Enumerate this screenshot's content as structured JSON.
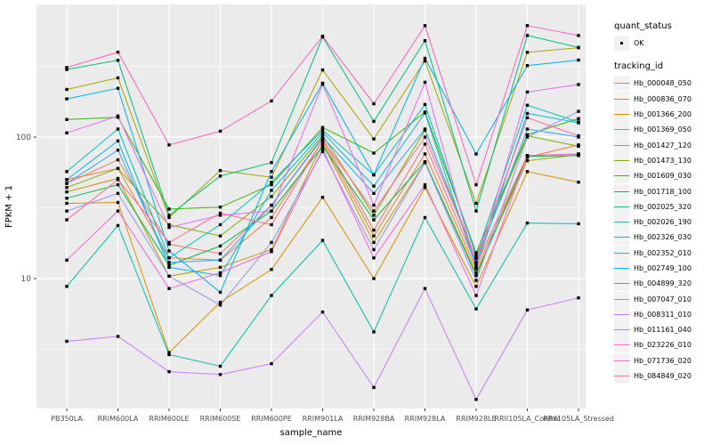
{
  "figure": {
    "panel": {
      "bg": "#EBEBEB",
      "grid_color": "#FFFFFF",
      "point_color": "#000000",
      "tick_label_color": "#4D4D4D",
      "axis_title_color": "#000000"
    },
    "legend": {
      "quant_status": {
        "title": "quant_status",
        "items": [
          {
            "label": "OK",
            "marker": "black-square"
          }
        ]
      },
      "tracking_id": {
        "title": "tracking_id"
      }
    }
  },
  "chart_data": {
    "type": "line",
    "title": "",
    "xlabel": "sample_name",
    "ylabel": "FPKM + 1",
    "y_scale": "log10",
    "ylim": [
      1.15,
      850
    ],
    "y_ticks": [
      {
        "label": "10",
        "value": 10
      },
      {
        "label": "100",
        "value": 100
      }
    ],
    "y_minor_gridlines": [
      3.162,
      31.62,
      316.2
    ],
    "grid": true,
    "legend_position": "right",
    "point_marker": "filled-black-square",
    "categories": [
      "PB350LA",
      "RRIM600LA",
      "RRIM600LE",
      "RRIM600SE",
      "RRIM600PE",
      "RRIM901LA",
      "RRIM928BA",
      "RRIM928LA",
      "RRIM928LE",
      "RRII105LA_Control",
      "RRII105LA_Stressed"
    ],
    "series": [
      {
        "name": "Hb_000048_050",
        "color": "#F8766D",
        "values": [
          47,
          69,
          17.5,
          15,
          33,
          98,
          22,
          89,
          12.6,
          74,
          76
        ]
      },
      {
        "name": "Hb_000836_070",
        "color": "#EA8331",
        "values": [
          50,
          60,
          14,
          13.5,
          27,
          94,
          20,
          76,
          11.7,
          72,
          88
        ]
      },
      {
        "name": "Hb_001366_200",
        "color": "#D89000",
        "values": [
          34,
          34.5,
          3.0,
          6.8,
          11.6,
          37.5,
          10,
          44,
          8.8,
          57,
          48
        ]
      },
      {
        "name": "Hb_001369_050",
        "color": "#C09B00",
        "values": [
          41,
          51,
          10.4,
          12,
          16,
          90,
          18,
          66,
          11,
          68,
          75
        ]
      },
      {
        "name": "Hb_001427_120",
        "color": "#A3A500",
        "values": [
          217,
          262,
          27,
          58,
          52,
          298,
          97,
          345,
          34,
          397,
          428
        ]
      },
      {
        "name": "Hb_001473_130",
        "color": "#7CAE00",
        "values": [
          44,
          60,
          24,
          20,
          38,
          103,
          28,
          112,
          13.8,
          102,
          86
        ]
      },
      {
        "name": "Hb_001609_030",
        "color": "#39B600",
        "values": [
          133,
          138,
          31,
          32,
          46,
          117,
          77,
          150,
          15.2,
          104,
          135
        ]
      },
      {
        "name": "Hb_001718_100",
        "color": "#00BB4E",
        "values": [
          37,
          46,
          12.4,
          17,
          30,
          86,
          26,
          67,
          10.5,
          73,
          74
        ]
      },
      {
        "name": "Hb_002025_320",
        "color": "#00BF7D",
        "values": [
          300,
          349,
          28,
          53,
          66,
          510,
          129,
          480,
          30,
          522,
          430
        ]
      },
      {
        "name": "Hb_002026_190",
        "color": "#00C1A3",
        "values": [
          8.8,
          23.7,
          2.9,
          2.4,
          7.6,
          18.6,
          4.2,
          27,
          6.1,
          24.7,
          24.4
        ]
      },
      {
        "name": "Hb_002326_030",
        "color": "#00BFC4",
        "values": [
          57,
          114,
          14,
          24,
          48,
          112,
          54,
          170,
          14.5,
          168,
          128
        ]
      },
      {
        "name": "Hb_002352_010",
        "color": "#00BAE0",
        "values": [
          50,
          94,
          12,
          10.5,
          42,
          108,
          45,
          148,
          12,
          147,
          126
        ]
      },
      {
        "name": "Hb_002749_100",
        "color": "#00B0F6",
        "values": [
          186,
          221,
          15.7,
          8,
          57,
          240,
          54,
          360,
          76,
          320,
          350
        ]
      },
      {
        "name": "Hb_004899_320",
        "color": "#35A2FF",
        "values": [
          47,
          81,
          13,
          13.5,
          33,
          100,
          40,
          114,
          13,
          114,
          100
        ]
      },
      {
        "name": "Hb_007047_010",
        "color": "#9590FF",
        "values": [
          30,
          40,
          10.4,
          6.5,
          18,
          79,
          16,
          66,
          9.7,
          100,
          152
        ]
      },
      {
        "name": "Hb_008311_010",
        "color": "#C77CFF",
        "values": [
          3.6,
          3.9,
          2.2,
          2.1,
          2.5,
          5.8,
          1.7,
          8.5,
          1.4,
          6.0,
          7.3
        ]
      },
      {
        "name": "Hb_011161_040",
        "color": "#E76BF3",
        "values": [
          107,
          141,
          23,
          28,
          30,
          236,
          33,
          244,
          12,
          208,
          235
        ]
      },
      {
        "name": "Hb_023226_010",
        "color": "#FA62DB",
        "values": [
          13.5,
          30,
          8.5,
          11,
          15.5,
          82,
          14,
          46,
          7.6,
          74,
          76
        ]
      },
      {
        "name": "Hb_071736_020",
        "color": "#FF62BC",
        "values": [
          310,
          398,
          88,
          110,
          180,
          516,
          172,
          613,
          46,
          613,
          522
        ]
      },
      {
        "name": "Hb_084849_020",
        "color": "#FF6A98",
        "values": [
          26,
          50,
          18,
          29,
          24,
          95,
          30,
          100,
          14,
          137,
          102
        ]
      }
    ]
  }
}
